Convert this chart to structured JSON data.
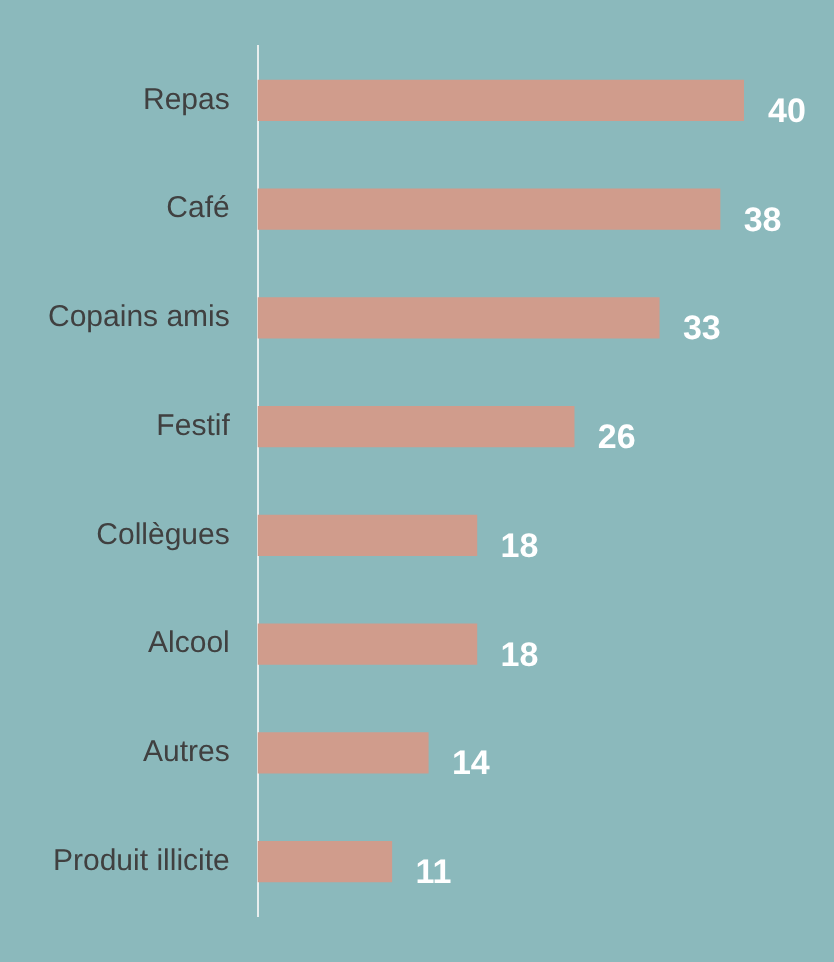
{
  "chart_data": {
    "type": "bar",
    "orientation": "horizontal",
    "categories": [
      "Repas",
      "Café",
      "Copains amis",
      "Festif",
      "Collègues",
      "Alcool",
      "Autres",
      "Produit illicite"
    ],
    "values": [
      40,
      38,
      33,
      26,
      18,
      18,
      14,
      11
    ],
    "color": "#d09c8c",
    "data_labels": true,
    "legend": false
  }
}
